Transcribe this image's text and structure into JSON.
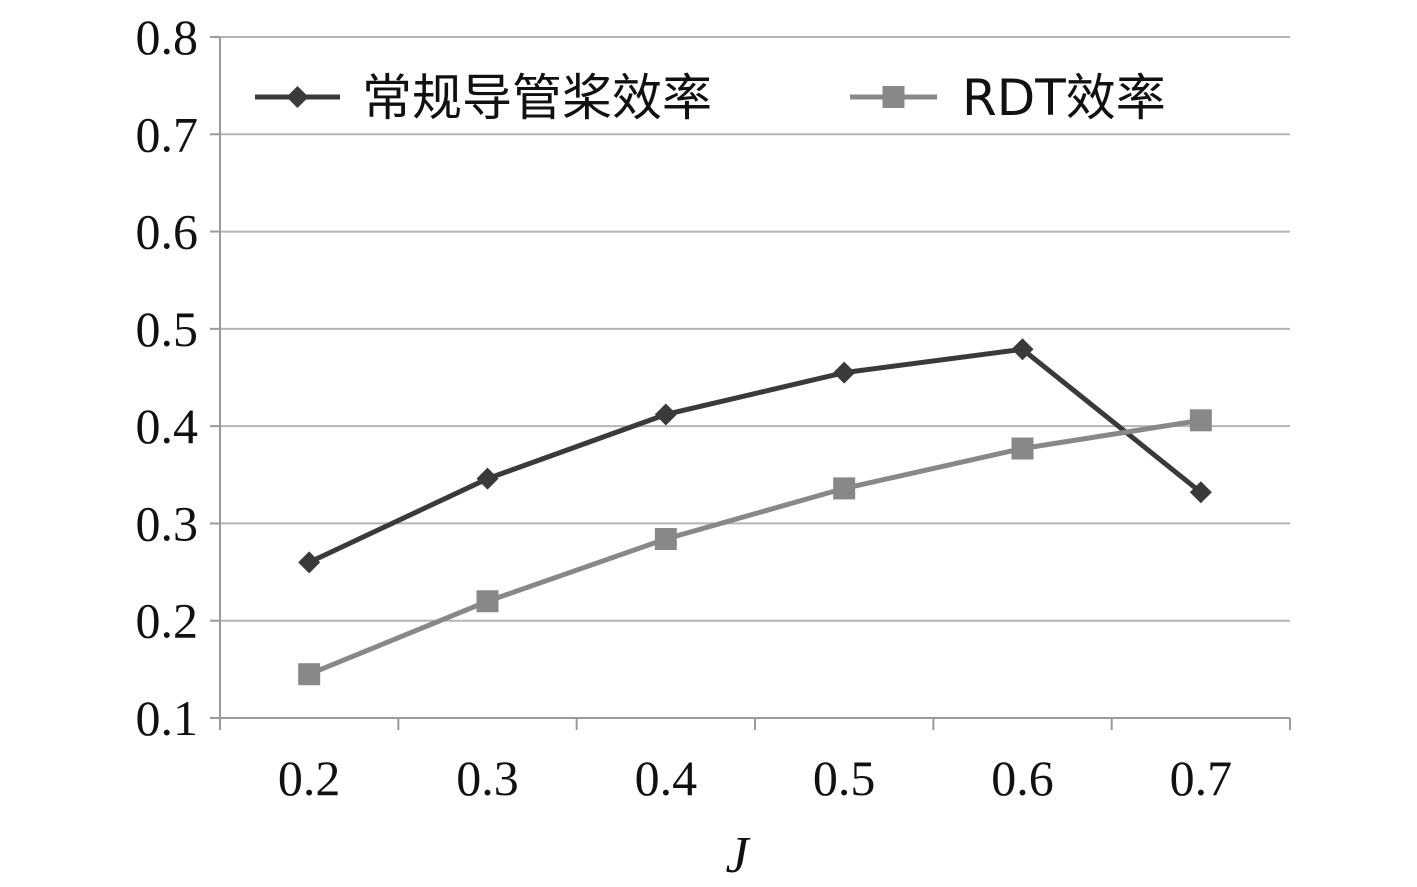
{
  "chart_data": {
    "type": "line",
    "title": "",
    "xlabel": "J",
    "ylabel": "",
    "categories": [
      "0.2",
      "0.3",
      "0.4",
      "0.5",
      "0.6",
      "0.7"
    ],
    "y_ticks": [
      "0.1",
      "0.2",
      "0.3",
      "0.4",
      "0.5",
      "0.6",
      "0.7",
      "0.8"
    ],
    "ylim": [
      0.1,
      0.8
    ],
    "grid": true,
    "legend_position": "top",
    "series": [
      {
        "name": "常规导管桨效率",
        "marker": "diamond",
        "color": "#3a3a3a",
        "values": [
          0.26,
          0.346,
          0.412,
          0.455,
          0.479,
          0.332
        ]
      },
      {
        "name": "RDT效率",
        "marker": "square",
        "color": "#888888",
        "values": [
          0.145,
          0.22,
          0.284,
          0.336,
          0.377,
          0.406
        ]
      }
    ]
  }
}
